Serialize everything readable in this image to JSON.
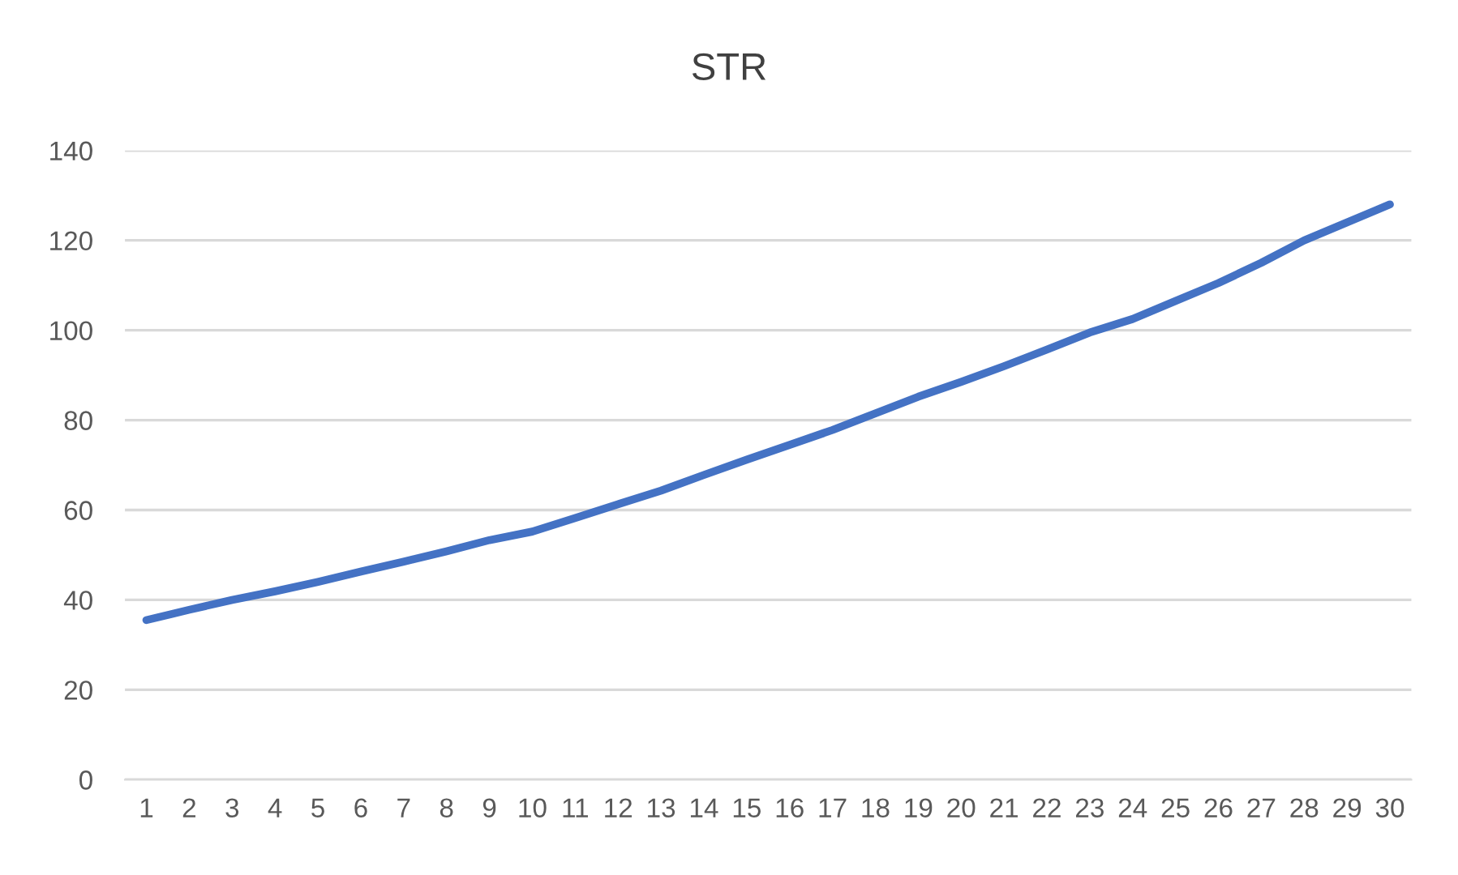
{
  "chart_data": {
    "type": "line",
    "title": "STR",
    "categories": [
      "1",
      "2",
      "3",
      "4",
      "5",
      "6",
      "7",
      "8",
      "9",
      "10",
      "11",
      "12",
      "13",
      "14",
      "15",
      "16",
      "17",
      "18",
      "19",
      "20",
      "21",
      "22",
      "23",
      "24",
      "25",
      "26",
      "27",
      "28",
      "29",
      "30"
    ],
    "series": [
      {
        "color": "#4472c4",
        "values": [
          35.5,
          37.8,
          40,
          41.9,
          44,
          46.3,
          48.5,
          50.8,
          53.3,
          55.2,
          58.2,
          61.3,
          64.3,
          67.8,
          71.2,
          74.5,
          77.8,
          81.5,
          85.2,
          88.5,
          92,
          95.7,
          99.5,
          102.5,
          106.5,
          110.5,
          115,
          120,
          124,
          128
        ]
      }
    ],
    "ylim": [
      0,
      140
    ],
    "yticks": [
      0,
      20,
      40,
      60,
      80,
      100,
      120,
      140
    ],
    "grid": "y",
    "marker": "none",
    "line_style": "solid"
  }
}
